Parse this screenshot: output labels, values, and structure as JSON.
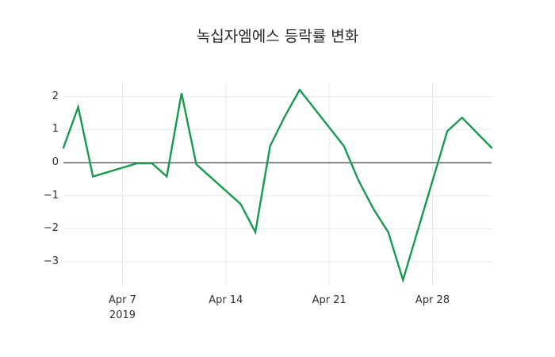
{
  "chart_data": {
    "type": "line",
    "title": "녹십자엠에스 등락률 변화",
    "xlabel": "",
    "ylabel": "",
    "grid": true,
    "legend": false,
    "zero_line": true,
    "x_unit": "date (business days, April 2019)",
    "x_range_days": [
      0,
      29
    ],
    "ylim": [
      -3.7,
      2.4
    ],
    "y_ticks": [
      {
        "label": "2",
        "value": 2
      },
      {
        "label": "1",
        "value": 1
      },
      {
        "label": "0",
        "value": 0
      },
      {
        "label": "−1",
        "value": -1
      },
      {
        "label": "−2",
        "value": -2
      },
      {
        "label": "−3",
        "value": -3
      }
    ],
    "x_ticks": [
      {
        "label": "Apr 7",
        "sublabel": "2019",
        "day_offset": 4
      },
      {
        "label": "Apr 14",
        "sublabel": "",
        "day_offset": 11
      },
      {
        "label": "Apr 21",
        "sublabel": "",
        "day_offset": 18
      },
      {
        "label": "Apr 28",
        "sublabel": "",
        "day_offset": 25
      }
    ],
    "series": [
      {
        "color": "#179a4d",
        "points": [
          {
            "date": "Apr 3",
            "day_offset": 0,
            "value": 0.45
          },
          {
            "date": "Apr 4",
            "day_offset": 1,
            "value": 1.68
          },
          {
            "date": "Apr 5",
            "day_offset": 2,
            "value": -0.42
          },
          {
            "date": "Apr 8",
            "day_offset": 5,
            "value": -0.02
          },
          {
            "date": "Apr 9",
            "day_offset": 6,
            "value": -0.02
          },
          {
            "date": "Apr 10",
            "day_offset": 7,
            "value": -0.42
          },
          {
            "date": "Apr 11",
            "day_offset": 8,
            "value": 2.1
          },
          {
            "date": "Apr 12",
            "day_offset": 9,
            "value": -0.05
          },
          {
            "date": "Apr 15",
            "day_offset": 12,
            "value": -1.25
          },
          {
            "date": "Apr 16",
            "day_offset": 13,
            "value": -2.1
          },
          {
            "date": "Apr 17",
            "day_offset": 14,
            "value": 0.5
          },
          {
            "date": "Apr 18",
            "day_offset": 15,
            "value": 1.4
          },
          {
            "date": "Apr 19",
            "day_offset": 16,
            "value": 2.2
          },
          {
            "date": "Apr 22",
            "day_offset": 19,
            "value": 0.5
          },
          {
            "date": "Apr 23",
            "day_offset": 20,
            "value": -0.55
          },
          {
            "date": "Apr 24",
            "day_offset": 21,
            "value": -1.4
          },
          {
            "date": "Apr 25",
            "day_offset": 22,
            "value": -2.1
          },
          {
            "date": "Apr 26",
            "day_offset": 23,
            "value": -3.55
          },
          {
            "date": "Apr 29",
            "day_offset": 26,
            "value": 0.95
          },
          {
            "date": "Apr 30",
            "day_offset": 27,
            "value": 1.36
          },
          {
            "date": "May 2",
            "day_offset": 29,
            "value": 0.45
          }
        ]
      }
    ],
    "colors": {
      "line": "#179a4d",
      "grid": "#e8e8e8",
      "zero_line": "#444444",
      "text": "#2f2f2f",
      "background": "#ffffff"
    }
  }
}
